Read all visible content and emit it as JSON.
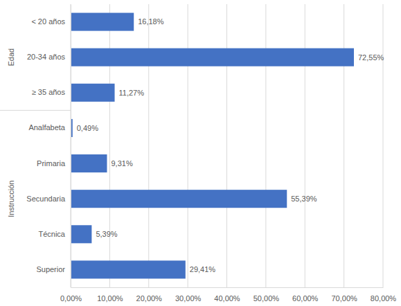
{
  "chart_data": {
    "type": "bar",
    "orientation": "horizontal",
    "categories": [
      "< 20 años",
      "20-34 años",
      "≥ 35 años",
      "Analfabeta",
      "Primaria",
      "Secundaria",
      "Técnica",
      "Superior"
    ],
    "values": [
      16.18,
      72.55,
      11.27,
      0.49,
      9.31,
      55.39,
      5.39,
      29.41
    ],
    "value_labels": [
      "16,18%",
      "72,55%",
      "11,27%",
      "0,49%",
      "9,31%",
      "55,39%",
      "5,39%",
      "29,41%"
    ],
    "groups": [
      {
        "name": "Edad",
        "count": 3
      },
      {
        "name": "Instrucción",
        "count": 5
      }
    ],
    "color": "#4472c4",
    "xlim": [
      0,
      80
    ],
    "xticks": [
      {
        "value": 0,
        "label": "0,00%"
      },
      {
        "value": 10,
        "label": "10,00%"
      },
      {
        "value": 20,
        "label": "20,00%"
      },
      {
        "value": 30,
        "label": "30,00%"
      },
      {
        "value": 40,
        "label": "40,00%"
      },
      {
        "value": 50,
        "label": "50,00%"
      },
      {
        "value": 60,
        "label": "60,00%"
      },
      {
        "value": 70,
        "label": "70,00%"
      },
      {
        "value": 80,
        "label": "80,00%"
      }
    ],
    "grid": true,
    "data_labels": true
  }
}
